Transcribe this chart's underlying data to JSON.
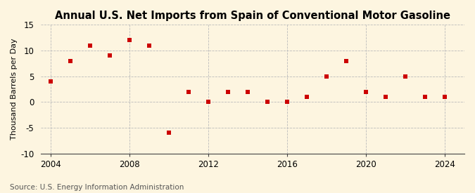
{
  "title": "Annual U.S. Net Imports from Spain of Conventional Motor Gasoline",
  "ylabel": "Thousand Barrels per Day",
  "source": "Source: U.S. Energy Information Administration",
  "years": [
    2004,
    2005,
    2006,
    2007,
    2008,
    2009,
    2010,
    2011,
    2012,
    2013,
    2014,
    2015,
    2016,
    2017,
    2018,
    2019,
    2020,
    2021,
    2022,
    2023,
    2024
  ],
  "values": [
    4,
    8,
    11,
    9,
    12,
    11,
    -6,
    2,
    0,
    2,
    2,
    0,
    0,
    1,
    5,
    8,
    2,
    1,
    5,
    1,
    1
  ],
  "marker_color": "#cc0000",
  "marker": "s",
  "marker_size": 4,
  "bg_color": "#fdf5e0",
  "plot_bg_color": "#ffffff",
  "grid_color": "#bbbbbb",
  "spine_color": "#444444",
  "ylim": [
    -10,
    15
  ],
  "yticks": [
    -10,
    -5,
    0,
    5,
    10,
    15
  ],
  "xlim": [
    2003.5,
    2025.0
  ],
  "xticks": [
    2004,
    2008,
    2012,
    2016,
    2020,
    2024
  ],
  "title_fontsize": 10.5,
  "label_fontsize": 8,
  "tick_fontsize": 8.5,
  "source_fontsize": 7.5
}
